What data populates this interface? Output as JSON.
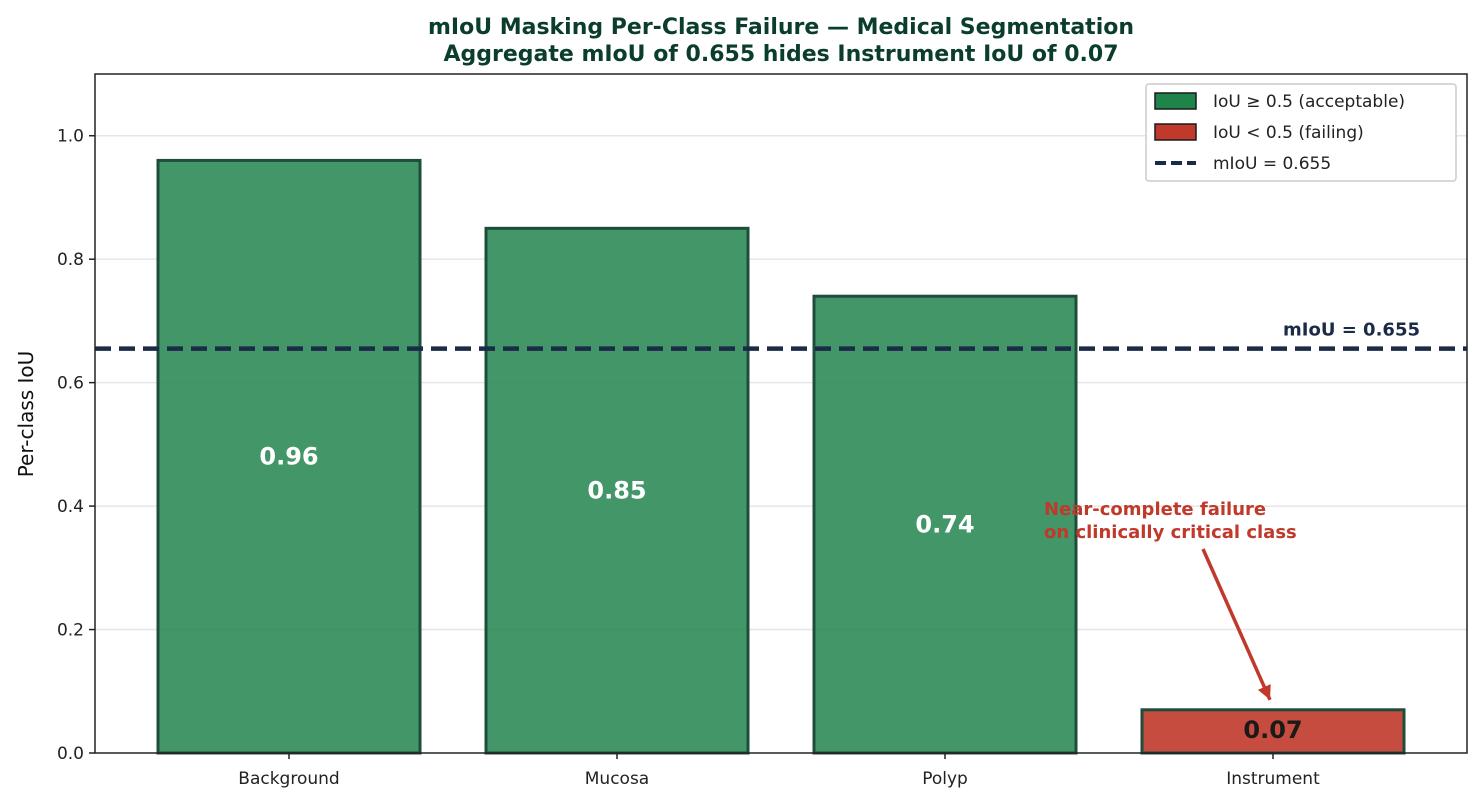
{
  "chart_data": {
    "type": "bar",
    "title": "mIoU Masking Per-Class Failure — Medical Segmentation",
    "subtitle": "Aggregate mIoU of 0.655 hides Instrument IoU of 0.07",
    "xlabel": "",
    "ylabel": "Per-class IoU",
    "ylim": [
      0,
      1.1
    ],
    "yticks": [
      0.0,
      0.2,
      0.4,
      0.6,
      0.8,
      1.0
    ],
    "ytick_labels": [
      "0.0",
      "0.2",
      "0.4",
      "0.6",
      "0.8",
      "1.0"
    ],
    "grid": "horizontal",
    "categories": [
      "Background",
      "Mucosa",
      "Polyp",
      "Instrument"
    ],
    "values": [
      0.96,
      0.85,
      0.74,
      0.07
    ],
    "value_labels": [
      "0.96",
      "0.85",
      "0.74",
      "0.07"
    ],
    "threshold": 0.5,
    "mean_line": {
      "value": 0.655,
      "label": "mIoU = 0.655"
    },
    "legend": {
      "placement": "top-right",
      "entries": [
        {
          "label": "IoU ≥ 0.5 (acceptable)",
          "kind": "patch",
          "color": "#1e8449"
        },
        {
          "label": "IoU < 0.5 (failing)",
          "kind": "patch",
          "color": "#c0392b"
        },
        {
          "label": "mIoU = 0.655",
          "kind": "dashed-line",
          "color": "#1b2a47"
        }
      ]
    },
    "annotation": {
      "lines": [
        "Near-complete failure",
        "on clinically critical class"
      ],
      "target_category": "Instrument",
      "target_value": 0.07
    },
    "colors": {
      "acceptable_fill": "#2e8b57",
      "failing_fill": "#c0392b",
      "bar_edge": "#1e4d3b",
      "mean_line": "#1b2a47",
      "annotation": "#c0392b",
      "title": "#0b3d2e"
    }
  }
}
